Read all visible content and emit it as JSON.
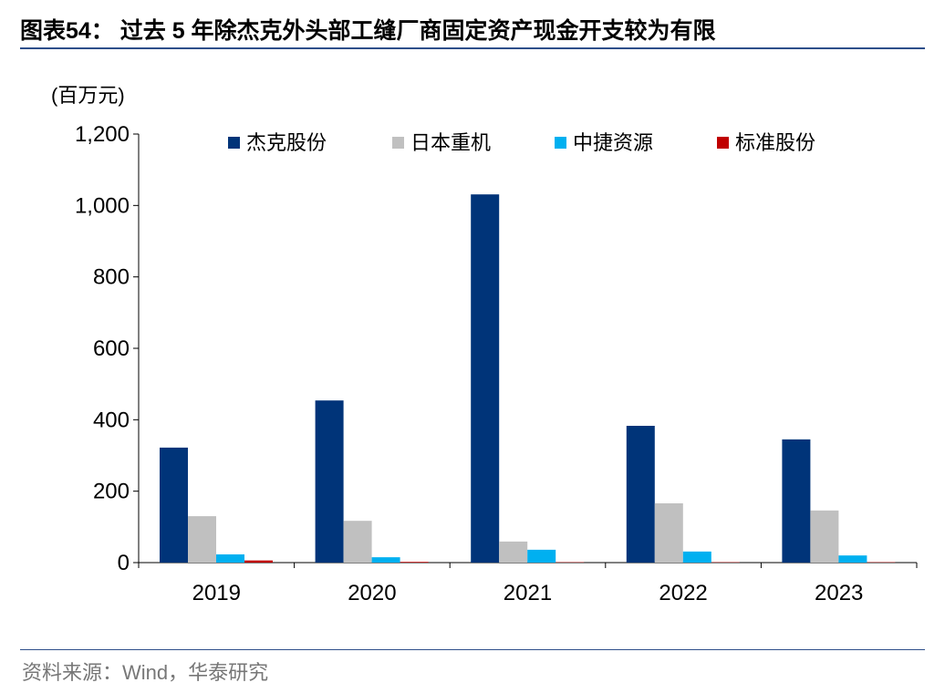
{
  "title": "图表54： 过去 5 年除杰克外头部工缝厂商固定资产现金开支较为有限",
  "source": "资料来源：Wind，华泰研究",
  "chart_data": {
    "type": "bar",
    "unit_label": "(百万元)",
    "categories": [
      "2019",
      "2020",
      "2021",
      "2022",
      "2023"
    ],
    "ylim": [
      0,
      1200
    ],
    "yticks": [
      0,
      200,
      400,
      600,
      800,
      1000,
      1200
    ],
    "ytick_labels": [
      "0",
      "200",
      "400",
      "600",
      "800",
      "1,000",
      "1,200"
    ],
    "legend_position": "top",
    "grid": false,
    "series": [
      {
        "name": "杰克股份",
        "color": "#003479",
        "values": [
          322,
          454,
          1031,
          383,
          345
        ]
      },
      {
        "name": "日本重机",
        "color": "#c0c0c0",
        "values": [
          130,
          117,
          59,
          166,
          146
        ]
      },
      {
        "name": "中捷资源",
        "color": "#00b0f0",
        "values": [
          23,
          15,
          36,
          31,
          20
        ]
      },
      {
        "name": "标准股份",
        "color": "#c00000",
        "values": [
          6,
          2,
          1,
          1,
          1
        ]
      }
    ]
  }
}
